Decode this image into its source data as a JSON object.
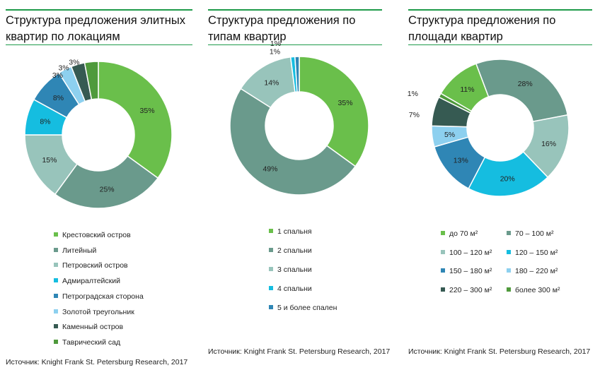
{
  "charts": [
    {
      "title": "Структура предложения элитных квартир по локациям",
      "source": "Источник: Knight Frank St. Petersburg Research, 2017",
      "chart_data": {
        "type": "pie",
        "categories": [
          "Крестовский остров",
          "Литейный",
          "Петровский остров",
          "Адмиралтейский",
          "Петроградская сторона",
          "Золотой треугольник",
          "Каменный остров",
          "Таврический сад"
        ],
        "values": [
          35,
          25,
          15,
          8,
          8,
          3,
          3,
          3
        ],
        "labels": [
          "35%",
          "25%",
          "15%",
          "8%",
          "8%",
          "3%",
          "3%",
          "3%"
        ],
        "colors": [
          "#6abf4b",
          "#6a9a8c",
          "#98c4bb",
          "#15bde0",
          "#2f86b5",
          "#8dd0ef",
          "#365a52",
          "#4f9a3c"
        ]
      }
    },
    {
      "title": "Структура предложения по типам квартир",
      "source": "Источник: Knight Frank St. Petersburg Research, 2017",
      "chart_data": {
        "type": "pie",
        "categories": [
          "1 спальня",
          "2 спальни",
          "3 спальни",
          "4 спальни",
          "5 и более спален"
        ],
        "values": [
          35,
          49,
          14,
          1,
          1
        ],
        "labels": [
          "35%",
          "49%",
          "14%",
          "1%",
          "1%"
        ],
        "colors": [
          "#6abf4b",
          "#6a9a8c",
          "#98c4bb",
          "#15bde0",
          "#2f86b5"
        ]
      }
    },
    {
      "title": "Структура предложения по площади квартир",
      "source": "Источник: Knight Frank St. Petersburg Research, 2017",
      "chart_data": {
        "type": "pie",
        "categories": [
          "70 – 100 м²",
          "100 – 120 м²",
          "120 – 150 м²",
          "150 – 180 м²",
          "180 – 220 м²",
          "220 – 300 м²",
          "более 300 м²",
          "до 70 м²"
        ],
        "values": [
          28,
          16,
          20,
          13,
          5,
          7,
          1,
          11
        ],
        "labels": [
          "28%",
          "16%",
          "20%",
          "13%",
          "5%",
          "7%",
          "1%",
          "11%"
        ],
        "colors": [
          "#6a9a8c",
          "#98c4bb",
          "#15bde0",
          "#2f86b5",
          "#8dd0ef",
          "#365a52",
          "#4f9a3c",
          "#6abf4b"
        ],
        "legend": [
          "до 70 м²",
          "70 – 100 м²",
          "100 – 120 м²",
          "120 – 150 м²",
          "150 – 180 м²",
          "180 – 220 м²",
          "220 – 300 м²",
          "более 300 м²"
        ],
        "legend_colors": [
          "#6abf4b",
          "#6a9a8c",
          "#98c4bb",
          "#15bde0",
          "#2f86b5",
          "#8dd0ef",
          "#365a52",
          "#4f9a3c"
        ]
      }
    }
  ]
}
